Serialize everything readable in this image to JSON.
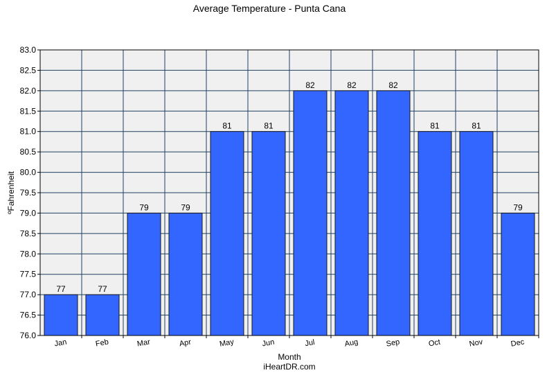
{
  "chart_data": {
    "type": "bar",
    "title": "Average Temperature - Punta Cana",
    "xlabel": "Month",
    "ylabel": "ºFahrenheit",
    "credit": "iHeartDR.com",
    "categories": [
      "Jan",
      "Feb",
      "Mar",
      "Apr",
      "May",
      "Jun",
      "Jul",
      "Aug",
      "Sep",
      "Oct",
      "Nov",
      "Dec"
    ],
    "values": [
      77,
      77,
      79,
      79,
      81,
      81,
      82,
      82,
      82,
      81,
      81,
      79
    ],
    "ylim": [
      76.0,
      83.0
    ],
    "ytick_step": 0.5,
    "yticks": [
      "76.0",
      "76.5",
      "77.0",
      "77.5",
      "78.0",
      "78.5",
      "79.0",
      "79.5",
      "80.0",
      "80.5",
      "81.0",
      "81.5",
      "82.0",
      "82.5",
      "83.0"
    ],
    "grid": true,
    "legend": "none",
    "colors": {
      "bar": "#3366ff",
      "bar_edge": "#1a1a1a",
      "plot_background": "#f0f0f0",
      "grid": "#1f3f5f"
    }
  }
}
